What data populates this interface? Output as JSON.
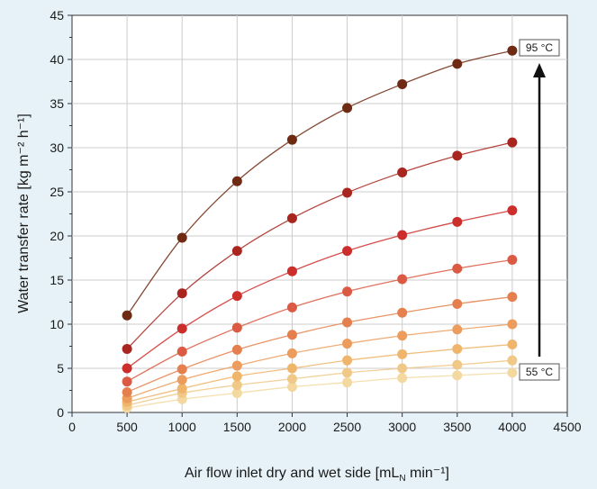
{
  "chart_data": {
    "type": "line",
    "title": "",
    "xlabel": "Air flow inlet dry and wet side [mL",
    "xlabel_sub": "N",
    "xlabel_tail": " min⁻¹]",
    "ylabel": "Water transfer rate [kg m⁻² h⁻¹]",
    "xlim": [
      0,
      4500
    ],
    "ylim": [
      0,
      45
    ],
    "x_ticks": [
      0,
      500,
      1000,
      1500,
      2000,
      2500,
      3000,
      3500,
      4000,
      4500
    ],
    "y_ticks": [
      0,
      5,
      10,
      15,
      20,
      25,
      30,
      35,
      40,
      45
    ],
    "grid": true,
    "x": [
      500,
      1000,
      1500,
      2000,
      2500,
      3000,
      3500,
      4000
    ],
    "series": [
      {
        "color": "#f3d9a0",
        "values": [
          0.5,
          1.5,
          2.2,
          2.9,
          3.4,
          3.9,
          4.2,
          4.5
        ]
      },
      {
        "color": "#f0c887",
        "values": [
          0.8,
          2.2,
          3.1,
          3.8,
          4.5,
          5.0,
          5.4,
          5.9
        ]
      },
      {
        "color": "#efb56b",
        "values": [
          1.2,
          2.7,
          4.1,
          5.0,
          5.9,
          6.6,
          7.2,
          7.7
        ]
      },
      {
        "color": "#ec9c5c",
        "values": [
          1.6,
          3.7,
          5.3,
          6.7,
          7.8,
          8.7,
          9.4,
          10.0
        ]
      },
      {
        "color": "#e5804e",
        "values": [
          2.3,
          4.9,
          7.1,
          8.8,
          10.2,
          11.3,
          12.3,
          13.1
        ]
      },
      {
        "color": "#db5a43",
        "values": [
          3.5,
          6.9,
          9.6,
          11.9,
          13.7,
          15.1,
          16.3,
          17.3
        ]
      },
      {
        "color": "#cc2e2b",
        "values": [
          5.0,
          9.5,
          13.2,
          16.0,
          18.3,
          20.1,
          21.6,
          22.9
        ]
      },
      {
        "color": "#a8261f",
        "values": [
          7.2,
          13.5,
          18.3,
          22.0,
          24.9,
          27.2,
          29.1,
          30.6
        ]
      },
      {
        "color": "#6e2a12",
        "values": [
          11.0,
          19.8,
          26.2,
          30.9,
          34.5,
          37.2,
          39.5,
          41.0
        ]
      }
    ],
    "annotations": {
      "top_label": "95 °C",
      "bottom_label": "55 °C"
    },
    "colors": {
      "background": "#e6f2f7",
      "plot_background": "#ffffff",
      "grid": "#cccccc",
      "line": "#b0a49a"
    }
  }
}
